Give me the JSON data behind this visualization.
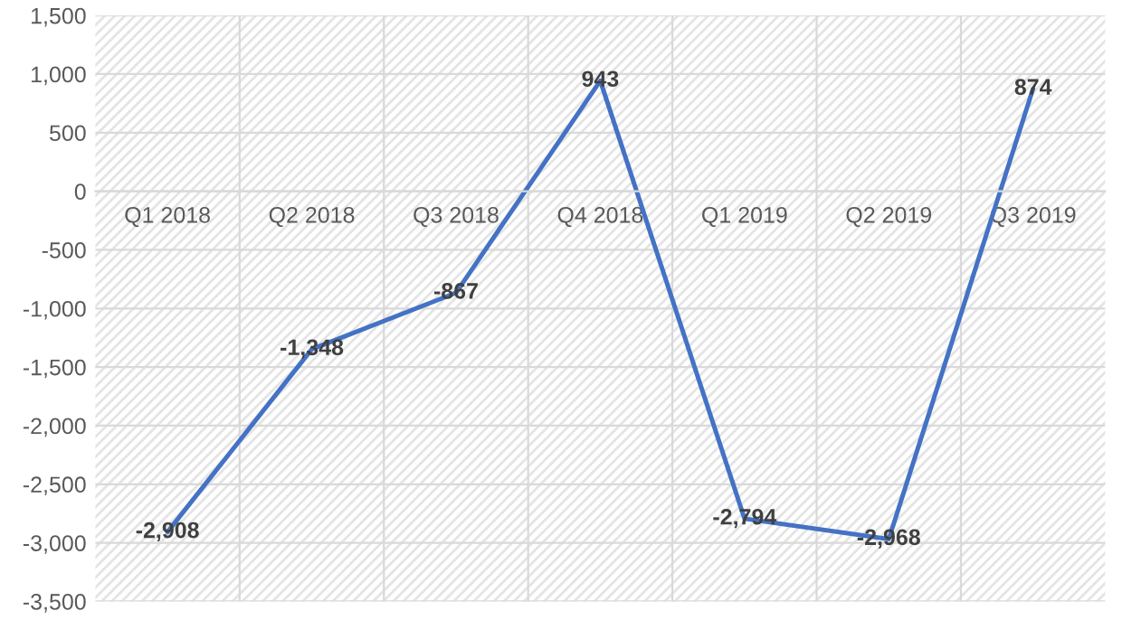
{
  "chart_data": {
    "type": "line",
    "categories": [
      "Q1 2018",
      "Q2 2018",
      "Q3 2018",
      "Q4 2018",
      "Q1 2019",
      "Q2 2019",
      "Q3 2019"
    ],
    "series": [
      {
        "color": "#4472c4",
        "values": [
          -2908,
          -1348,
          -867,
          943,
          -2794,
          -2968,
          874
        ],
        "value_labels": [
          "-2,908",
          "-1,348",
          "-867",
          "943",
          "-2,794",
          "-2,968",
          "874"
        ]
      }
    ],
    "ylim": [
      -3500,
      1500
    ],
    "yticks": [
      {
        "value": -3500,
        "label": "-3,500"
      },
      {
        "value": -3000,
        "label": "-3,000"
      },
      {
        "value": -2500,
        "label": "-2,500"
      },
      {
        "value": -2000,
        "label": "-2,000"
      },
      {
        "value": -1500,
        "label": "-1,500"
      },
      {
        "value": -1000,
        "label": "-1,000"
      },
      {
        "value": -500,
        "label": "-500"
      },
      {
        "value": 0,
        "label": "0"
      },
      {
        "value": 500,
        "label": "500"
      },
      {
        "value": 1000,
        "label": "1,000"
      },
      {
        "value": 1500,
        "label": "1,500"
      }
    ],
    "grid": true,
    "legend": false,
    "marker": "none",
    "line_style": "solid"
  }
}
